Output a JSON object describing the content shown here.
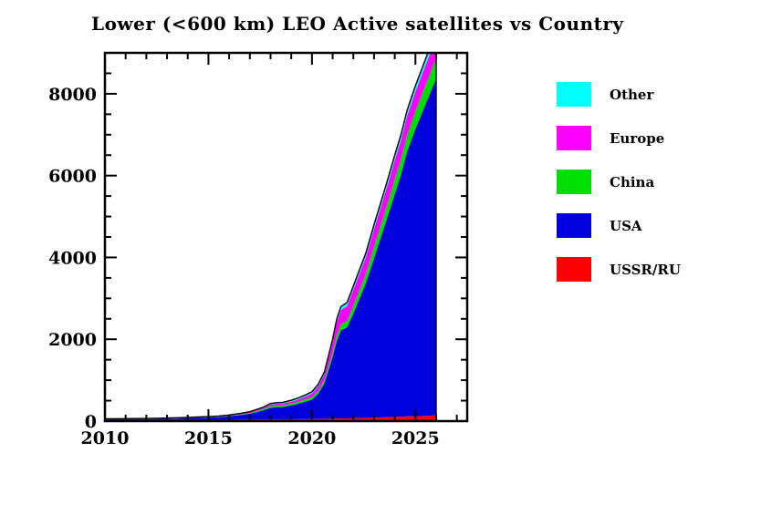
{
  "chart_data": {
    "type": "area",
    "stacked": true,
    "title": "Lower (<600 km) LEO Active satellites vs Country",
    "xlabel": "",
    "ylabel": "",
    "xlim": [
      2010,
      2027.5
    ],
    "ylim": [
      0,
      9000
    ],
    "grid": false,
    "legend_position": "right",
    "outline_color": "#000000",
    "frame_color": "#000000",
    "background_color": "#ffffff",
    "xticks": {
      "major": [
        2010,
        2015,
        2020,
        2025
      ],
      "minor_step": 1
    },
    "yticks": {
      "major": [
        0,
        2000,
        4000,
        6000,
        8000
      ],
      "minor_step": 500
    },
    "x": [
      2010,
      2010.5,
      2011,
      2011.5,
      2012,
      2012.5,
      2013,
      2013.5,
      2014,
      2014.5,
      2015,
      2015.5,
      2016,
      2016.5,
      2017,
      2017.3,
      2017.6,
      2018,
      2018.3,
      2018.6,
      2019,
      2019.3,
      2019.6,
      2020,
      2020.3,
      2020.6,
      2021,
      2021.2,
      2021.4,
      2021.7,
      2022,
      2022.3,
      2022.6,
      2023,
      2023.3,
      2023.6,
      2024,
      2024.3,
      2024.6,
      2025,
      2025.3,
      2025.6,
      2025.9,
      2026
    ],
    "series": [
      {
        "name": "USSR/RU",
        "color": "#ff0000",
        "values": [
          25,
          25,
          26,
          26,
          27,
          27,
          28,
          28,
          29,
          30,
          30,
          31,
          33,
          35,
          36,
          38,
          40,
          42,
          43,
          44,
          45,
          46,
          47,
          50,
          52,
          55,
          60,
          62,
          64,
          66,
          70,
          74,
          78,
          85,
          90,
          95,
          105,
          110,
          115,
          120,
          125,
          130,
          140,
          140
        ]
      },
      {
        "name": "USA",
        "color": "#0000dd",
        "values": [
          18,
          20,
          22,
          22,
          23,
          27,
          30,
          35,
          41,
          48,
          56,
          67,
          85,
          110,
          144,
          179,
          214,
          282,
          295,
          298,
          336,
          373,
          417,
          474,
          616,
          860,
          1500,
          1898,
          2151,
          2224,
          2555,
          2916,
          3277,
          3890,
          4350,
          4810,
          5440,
          5905,
          6470,
          7020,
          7385,
          7750,
          8110,
          8210
        ]
      },
      {
        "name": "China",
        "color": "#00dd00",
        "values": [
          3,
          3,
          3,
          4,
          4,
          5,
          5,
          6,
          6,
          7,
          8,
          9,
          11,
          14,
          18,
          22,
          26,
          38,
          40,
          42,
          45,
          48,
          52,
          60,
          70,
          85,
          120,
          140,
          150,
          160,
          200,
          220,
          240,
          290,
          310,
          330,
          370,
          390,
          410,
          440,
          460,
          480,
          500,
          500
        ]
      },
      {
        "name": "Europe",
        "color": "#ff00ff",
        "values": [
          4,
          4,
          4,
          5,
          5,
          5,
          6,
          6,
          7,
          7,
          8,
          9,
          11,
          14,
          18,
          24,
          30,
          42,
          44,
          46,
          50,
          55,
          62,
          90,
          110,
          140,
          250,
          320,
          350,
          360,
          380,
          390,
          400,
          420,
          430,
          440,
          450,
          455,
          460,
          470,
          475,
          480,
          485,
          485
        ]
      },
      {
        "name": "Other",
        "color": "#00ffff",
        "values": [
          5,
          5,
          5,
          5,
          6,
          6,
          6,
          7,
          7,
          8,
          8,
          9,
          10,
          12,
          14,
          17,
          20,
          26,
          28,
          30,
          34,
          38,
          42,
          46,
          52,
          60,
          70,
          80,
          85,
          90,
          95,
          100,
          105,
          115,
          120,
          125,
          135,
          140,
          145,
          150,
          155,
          160,
          165,
          165
        ]
      }
    ],
    "legend_order": [
      "Other",
      "Europe",
      "China",
      "USA",
      "USSR/RU"
    ]
  }
}
